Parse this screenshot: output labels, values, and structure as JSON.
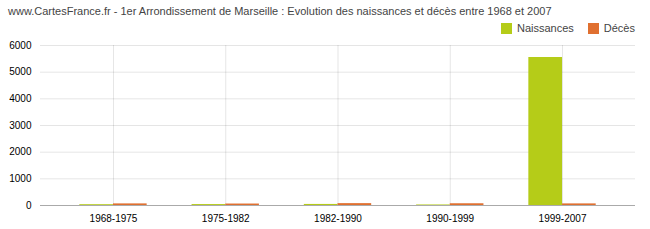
{
  "chart_data": {
    "type": "bar",
    "title": "www.CartesFrance.fr - 1er Arrondissement de Marseille : Evolution des naissances et décès entre 1968 et 2007",
    "categories": [
      "1968-1975",
      "1975-1982",
      "1982-1990",
      "1990-1999",
      "1999-2007"
    ],
    "series": [
      {
        "name": "Naissances",
        "color": "#b5cc18",
        "values": [
          30,
          35,
          40,
          20,
          5550
        ]
      },
      {
        "name": "Décès",
        "color": "#e07030",
        "values": [
          60,
          55,
          70,
          65,
          60
        ]
      }
    ],
    "ylim": [
      0,
      6000
    ],
    "yticks": [
      0,
      1000,
      2000,
      3000,
      4000,
      5000,
      6000
    ],
    "grid": true,
    "legend": "upper right"
  }
}
